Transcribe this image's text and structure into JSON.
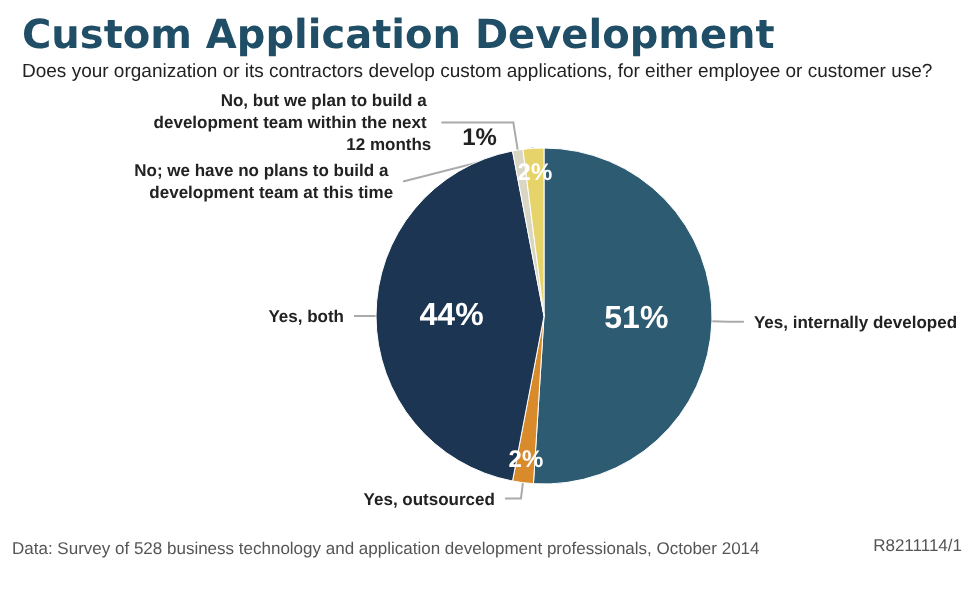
{
  "chart_data": {
    "type": "pie",
    "title": "Custom Application Development",
    "subtitle": "Does your organization or its contractors develop custom applications, for either employee or customer use?",
    "categories": [
      "Yes, internally developed",
      "Yes, outsourced",
      "Yes, both",
      "No, but we plan to build a development team within the next 12 months",
      "No; we have no plans to build a development team at this time"
    ],
    "values": [
      51,
      2,
      44,
      1,
      2
    ],
    "colors": [
      "#2d5b72",
      "#d98b2c",
      "#1b3553",
      "#d9d6c4",
      "#e6d46a"
    ],
    "value_labels": [
      "51%",
      "2%",
      "44%",
      "1%",
      "2%"
    ],
    "legend": false,
    "annotations": [
      "Data: Survey of 528 business technology and application development professionals, October 2014",
      "R8211114/1"
    ]
  }
}
